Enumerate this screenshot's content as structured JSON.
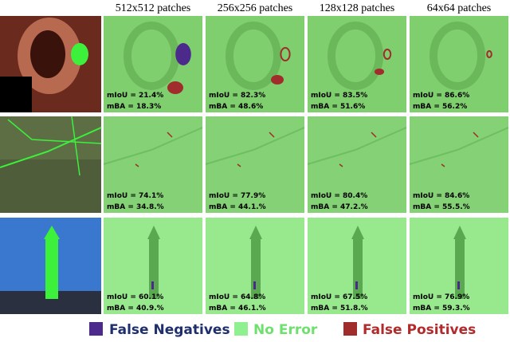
{
  "header": {
    "columns": [
      "512x512 patches",
      "256x256 patches",
      "128x128 patches",
      "64x64 patches"
    ]
  },
  "rows": [
    {
      "cells": [
        {
          "miou": "mIoU = 21.4%",
          "mba": "mBA = 18.3%"
        },
        {
          "miou": "mIoU = 82.3%",
          "mba": "mBA = 48.6%"
        },
        {
          "miou": "mIoU = 83.5%",
          "mba": "mBA = 51.6%"
        },
        {
          "miou": "mIoU = 86.6%",
          "mba": "mBA = 56.2%"
        }
      ]
    },
    {
      "cells": [
        {
          "miou": "mIoU = 74.1%",
          "mba": "mBA = 34.8.%"
        },
        {
          "miou": "mIoU = 77.9%",
          "mba": "mBA = 44.1.%"
        },
        {
          "miou": "mIoU = 80.4%",
          "mba": "mBA = 47.2.%"
        },
        {
          "miou": "mIoU = 84.6%",
          "mba": "mBA = 55.5.%"
        }
      ]
    },
    {
      "cells": [
        {
          "miou": "mIoU = 60.1%",
          "mba": "mBA = 40.9.%"
        },
        {
          "miou": "mIoU = 64.8%",
          "mba": "mBA = 46.1.%"
        },
        {
          "miou": "mIoU = 67.5%",
          "mba": "mBA = 51.8.%"
        },
        {
          "miou": "mIoU = 76.9%",
          "mba": "mBA = 59.3.%"
        }
      ]
    }
  ],
  "legend": [
    "False Negatives",
    "No Error",
    "False Positives"
  ]
}
